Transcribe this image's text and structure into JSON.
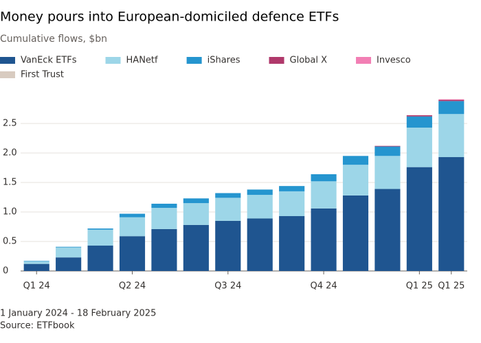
{
  "chart_data": {
    "type": "stacked-bar",
    "title": "Money pours into European-domiciled defence ETFs",
    "subtitle": "Cumulative flows, $bn",
    "footnote": "1 January 2024 - 18 February 2025",
    "source": "Source: ETFbook",
    "categories": [
      "Q1 24",
      null,
      null,
      "Q2 24",
      null,
      null,
      "Q3 24",
      null,
      null,
      "Q4 24",
      null,
      null,
      "Q1 25",
      "Q1 25"
    ],
    "series": [
      {
        "name": "VanEck ETFs",
        "color": "#1f5590",
        "values": [
          0.12,
          0.23,
          0.43,
          0.59,
          0.71,
          0.78,
          0.85,
          0.89,
          0.93,
          1.06,
          1.28,
          1.39,
          1.76,
          1.93
        ]
      },
      {
        "name": "HANetf",
        "color": "#9dd6e8",
        "values": [
          0.04,
          0.17,
          0.27,
          0.32,
          0.36,
          0.37,
          0.39,
          0.4,
          0.42,
          0.46,
          0.52,
          0.56,
          0.67,
          0.73
        ]
      },
      {
        "name": "iShares",
        "color": "#2595cf",
        "values": [
          0.01,
          0.01,
          0.02,
          0.06,
          0.07,
          0.08,
          0.08,
          0.09,
          0.09,
          0.12,
          0.15,
          0.16,
          0.19,
          0.22
        ]
      },
      {
        "name": "Global X",
        "color": "#b0396b",
        "values": [
          0,
          0,
          0,
          0,
          0,
          0,
          0,
          0,
          0,
          0,
          0,
          0.01,
          0.02,
          0.02
        ]
      },
      {
        "name": "Invesco",
        "color": "#f27fb4",
        "values": [
          0,
          0,
          0,
          0,
          0,
          0,
          0,
          0,
          0,
          0,
          0,
          0,
          0,
          0.01
        ]
      },
      {
        "name": "First Trust",
        "color": "#d8cbc0",
        "values": [
          0,
          0,
          0,
          0,
          0,
          0,
          0,
          0,
          0,
          0,
          0,
          0,
          0,
          0
        ]
      }
    ],
    "ylim": [
      0,
      3
    ],
    "yticks": [
      0,
      0.5,
      {
        "value": 1,
        "label": "1.0"
      },
      1.5,
      {
        "value": 2,
        "label": "2.0"
      },
      2.5
    ],
    "grid": true
  }
}
